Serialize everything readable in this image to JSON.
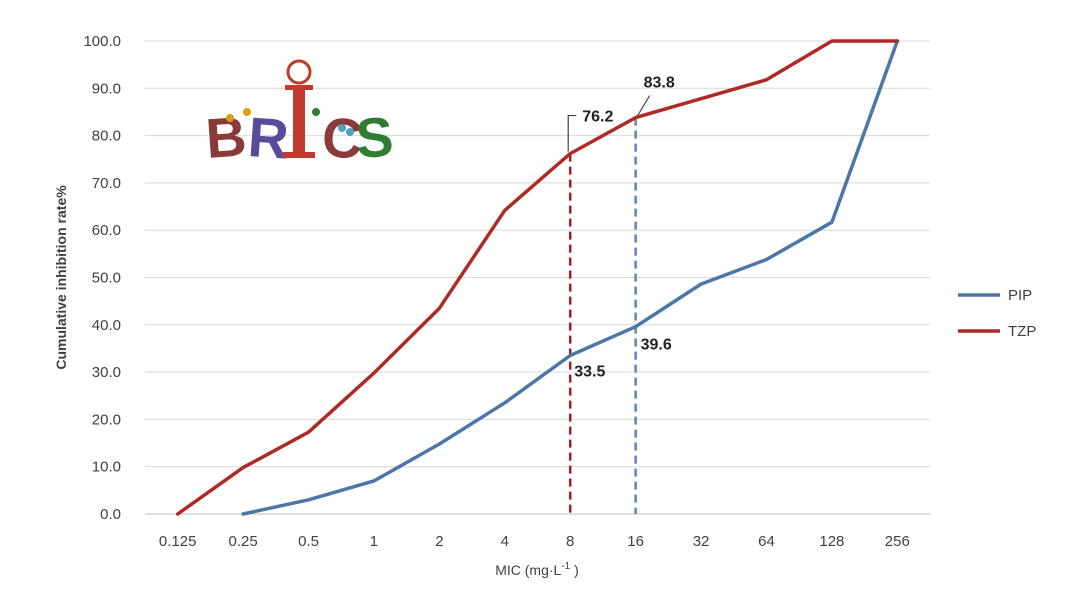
{
  "chart_data": {
    "type": "line",
    "categories": [
      "0.125",
      "0.25",
      "0.5",
      "1",
      "2",
      "4",
      "8",
      "16",
      "32",
      "64",
      "128",
      "256"
    ],
    "series": [
      {
        "name": "PIP",
        "color": "#4a77a8",
        "values": [
          null,
          0.0,
          3.0,
          7.0,
          14.8,
          23.5,
          33.5,
          39.6,
          48.6,
          53.8,
          61.7,
          100.0
        ]
      },
      {
        "name": "TZP",
        "color": "#b02a23",
        "values": [
          0.0,
          9.8,
          17.3,
          29.8,
          43.5,
          64.2,
          76.2,
          83.8,
          87.8,
          91.8,
          100.0,
          100.0
        ]
      }
    ],
    "ylim": [
      0,
      100
    ],
    "yticks": [
      "0.0",
      "10.0",
      "20.0",
      "30.0",
      "40.0",
      "50.0",
      "60.0",
      "70.0",
      "80.0",
      "90.0",
      "100.0"
    ],
    "ylabel": "Cumulative inhibition rate%",
    "xlabel_main": "MIC (mg·L",
    "xlabel_sup": "-1",
    "xlabel_end": " )",
    "grid": "horizontal",
    "legend_position": "right",
    "reference_lines": [
      {
        "category": "8",
        "color": "#a31f1f"
      },
      {
        "category": "16",
        "color": "#5b86b3"
      }
    ],
    "annotations": [
      {
        "label": "76.2",
        "category": "8",
        "value": 76.2
      },
      {
        "label": "83.8",
        "category": "16",
        "value": 83.8
      },
      {
        "label": "33.5",
        "category": "8",
        "value": 33.5
      },
      {
        "label": "39.6",
        "category": "16",
        "value": 39.6
      }
    ]
  },
  "logo": {
    "text": "BRICS",
    "colors": [
      "#8b3a3a",
      "#5a4a9a",
      "#c0392b",
      "#2e7d32"
    ]
  }
}
